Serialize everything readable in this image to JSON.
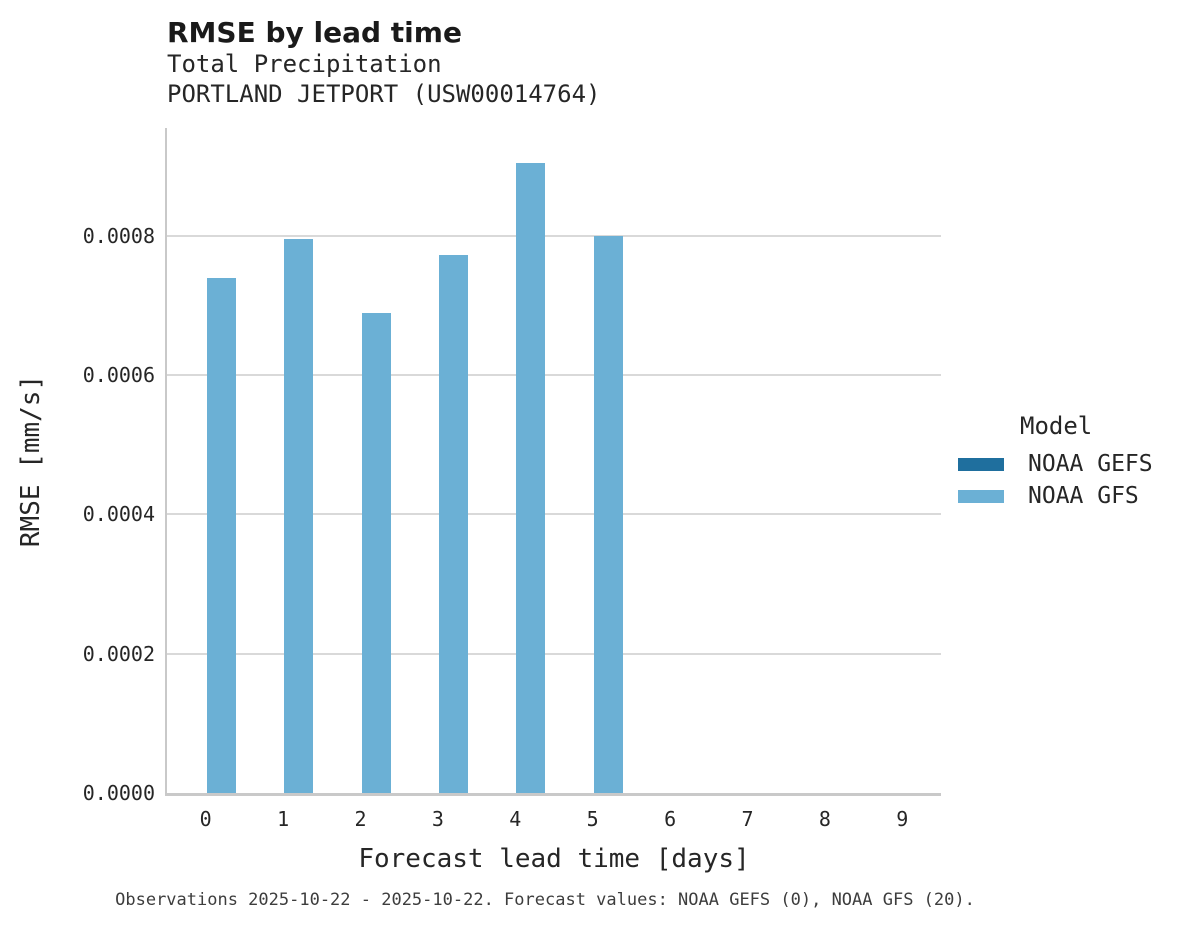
{
  "header": {
    "title": "RMSE by lead time",
    "subtitle_line1": "Total Precipitation",
    "subtitle_line2": "PORTLAND JETPORT (USW00014764)"
  },
  "chart_data": {
    "type": "bar",
    "title": "RMSE by lead time",
    "subtitle": [
      "Total Precipitation",
      "PORTLAND JETPORT (USW00014764)"
    ],
    "xlabel": "Forecast lead time [days]",
    "ylabel": "RMSE [mm/s]",
    "categories": [
      "0",
      "1",
      "2",
      "3",
      "4",
      "5",
      "6",
      "7",
      "8",
      "9"
    ],
    "ylim": [
      0,
      0.000955
    ],
    "grid": "horizontal",
    "legend_position": "center-right",
    "yticks": [
      {
        "value": 0.0,
        "label": "0.0000"
      },
      {
        "value": 0.0002,
        "label": "0.0002"
      },
      {
        "value": 0.0004,
        "label": "0.0004"
      },
      {
        "value": 0.0006,
        "label": "0.0006"
      },
      {
        "value": 0.0008,
        "label": "0.0008"
      }
    ],
    "series": [
      {
        "name": "NOAA GEFS",
        "color": "#1f6f9e",
        "values": [
          null,
          null,
          null,
          null,
          null,
          null,
          null,
          null,
          null,
          null
        ]
      },
      {
        "name": "NOAA GFS",
        "color": "#6bb0d5",
        "values": [
          0.00074,
          0.000795,
          0.00069,
          0.000772,
          0.000905,
          0.0008,
          null,
          null,
          null,
          null
        ]
      }
    ]
  },
  "legend": {
    "title": "Model",
    "entries": [
      {
        "label": "NOAA GEFS",
        "color": "#1f6f9e"
      },
      {
        "label": "NOAA GFS",
        "color": "#6bb0d5"
      }
    ]
  },
  "footer": {
    "text": "Observations 2025-10-22 - 2025-10-22. Forecast values: NOAA GEFS (0), NOAA GFS (20)."
  },
  "colors": {
    "grid": "#d9d9d9",
    "spine": "#c9c9c9",
    "bar_gefs": "#1f6f9e",
    "bar_gfs": "#6bb0d5"
  }
}
